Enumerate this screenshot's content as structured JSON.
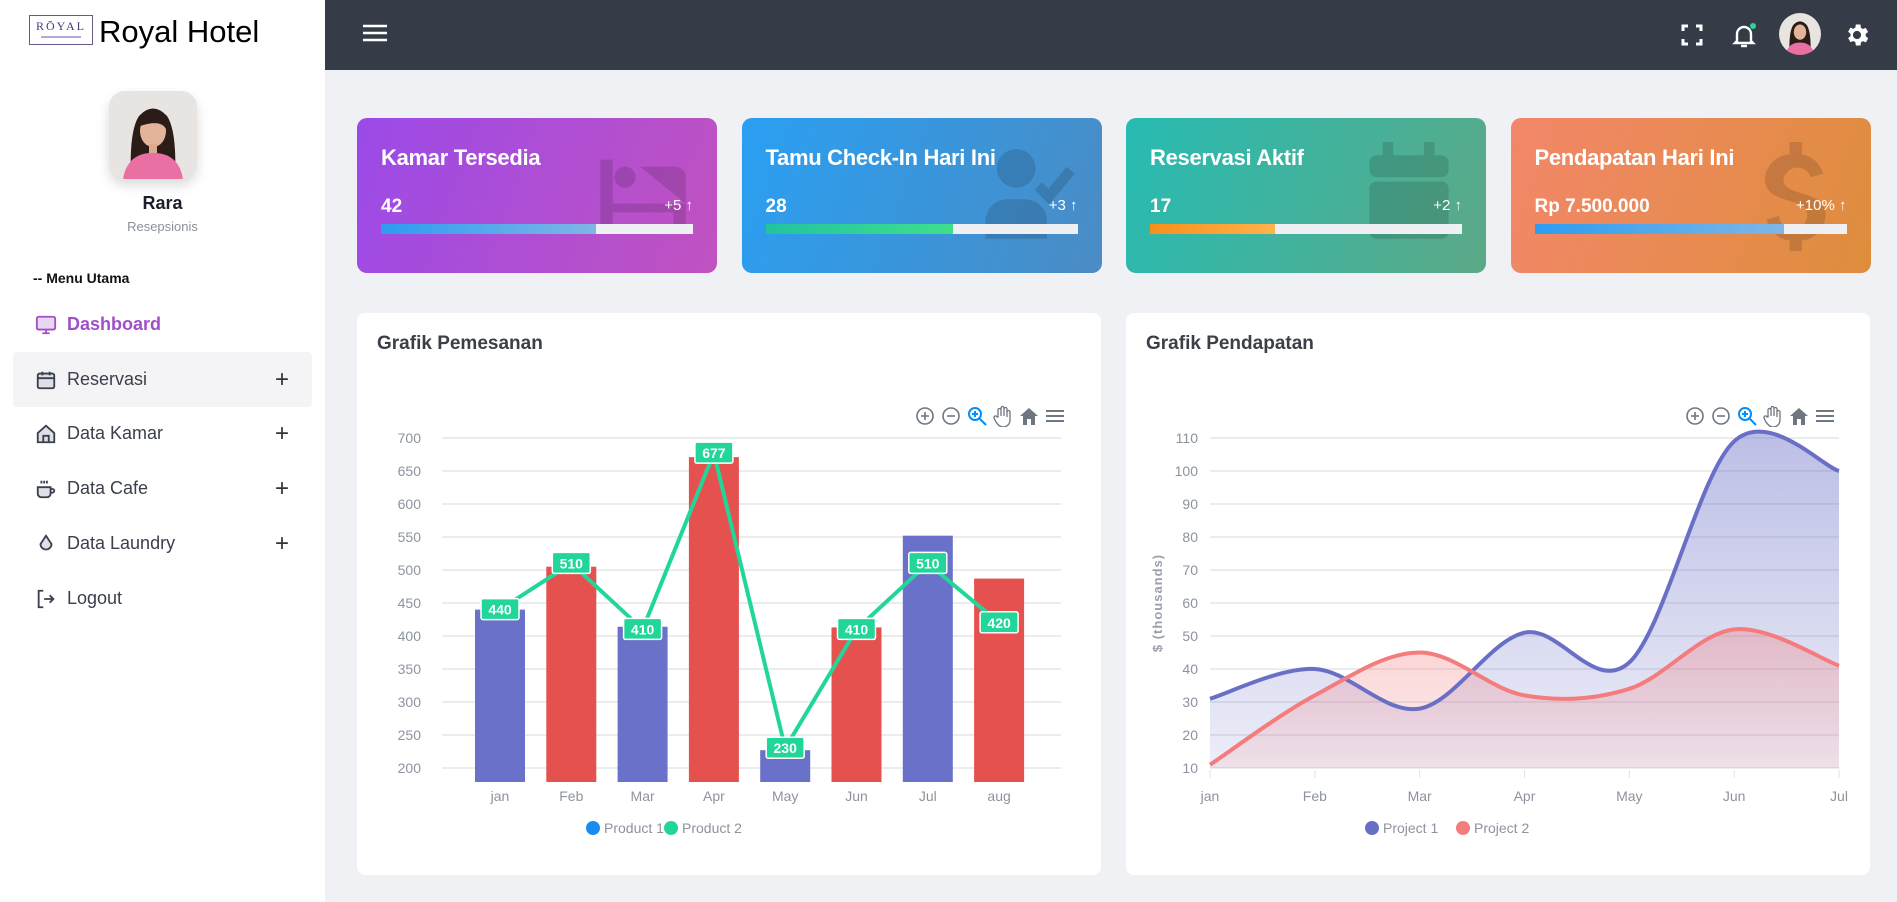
{
  "brand": {
    "logo_text": "RŌYAL",
    "title": "Royal Hotel"
  },
  "user": {
    "name": "Rara",
    "role": "Resepsionis"
  },
  "sidebar": {
    "section": "-- Menu Utama",
    "items": [
      {
        "label": "Dashboard",
        "icon": "monitor-icon",
        "active": true
      },
      {
        "label": "Reservasi",
        "icon": "calendar-icon",
        "expand": "+"
      },
      {
        "label": "Data Kamar",
        "icon": "home-icon",
        "expand": "+"
      },
      {
        "label": "Data Cafe",
        "icon": "coffee-icon",
        "expand": "+"
      },
      {
        "label": "Data Laundry",
        "icon": "drop-icon",
        "expand": "+"
      },
      {
        "label": "Logout",
        "icon": "logout-icon"
      }
    ]
  },
  "topbar": {
    "icons": [
      "menu-icon",
      "fullscreen-icon",
      "bell-icon",
      "avatar",
      "gear-icon"
    ],
    "notification_dot_color": "#2bd3a0"
  },
  "cards": [
    {
      "title": "Kamar Tersedia",
      "value": "42",
      "change": "+5",
      "progress": 0.69,
      "icon": "bed-icon",
      "gradient": [
        "#9b4ae8",
        "#c152c0"
      ],
      "bar": [
        "#2d9cf0",
        "#7fb6e6"
      ]
    },
    {
      "title": "Tamu Check-In Hari Ini",
      "value": "28",
      "change": "+3",
      "progress": 0.6,
      "icon": "user-check-icon",
      "gradient": [
        "#2a9ff2",
        "#4a8cc4"
      ],
      "bar": [
        "#22c3a0",
        "#3ee08c"
      ]
    },
    {
      "title": "Reservasi Aktif",
      "value": "17",
      "change": "+2",
      "progress": 0.4,
      "icon": "calendar-check-icon",
      "gradient": [
        "#27bbb2",
        "#5ca987"
      ],
      "bar": [
        "#f7901a",
        "#ffb24d"
      ]
    },
    {
      "title": "Pendapatan Hari Ini",
      "value": "Rp 7.500.000",
      "change": "+10%",
      "progress": 0.8,
      "icon": "dollar-icon",
      "gradient": [
        "#f3876a",
        "#de8d3c"
      ],
      "bar": [
        "#2d9cf0",
        "#7fb6e6"
      ]
    }
  ],
  "chart_data": [
    {
      "type": "bar",
      "title": "Grafik Pemesanan",
      "xlabel": "",
      "ylabel": "",
      "categories": [
        "jan",
        "Feb",
        "Mar",
        "Apr",
        "May",
        "Jun",
        "Jul",
        "aug"
      ],
      "ylim": [
        200,
        700
      ],
      "ytick_step": 50,
      "grid": true,
      "legend": "bottom",
      "series": [
        {
          "name": "Product 1",
          "type": "bar",
          "values": [
            440,
            505,
            414,
            671,
            227,
            413,
            552,
            487
          ],
          "legend_color": "#1a8cf0",
          "bar_colors": [
            "#6a71c8",
            "#e5514f"
          ]
        },
        {
          "name": "Product 2",
          "type": "line",
          "values": [
            440,
            510,
            410,
            677,
            230,
            410,
            510,
            420
          ],
          "color": "#22d69a",
          "data_labels": true
        }
      ]
    },
    {
      "type": "area",
      "title": "Grafik Pendapatan",
      "xlabel": "",
      "ylabel": "$ (thousands)",
      "categories": [
        "jan",
        "Feb",
        "Mar",
        "Apr",
        "May",
        "Jun",
        "Jul"
      ],
      "ylim": [
        10,
        110
      ],
      "ytick_step": 10,
      "grid": true,
      "legend": "bottom",
      "smooth": true,
      "series": [
        {
          "name": "Project 1",
          "values": [
            31,
            40,
            28,
            51,
            42,
            109,
            100
          ],
          "color": "#6a6fc6"
        },
        {
          "name": "Project 2",
          "values": [
            11,
            32,
            45,
            32,
            34,
            52,
            41
          ],
          "color": "#f47c7c"
        }
      ]
    }
  ],
  "chart_toolbar": [
    "zoom-in-icon",
    "zoom-out-icon",
    "selection-zoom-icon",
    "pan-icon",
    "reset-home-icon",
    "menu-icon"
  ]
}
